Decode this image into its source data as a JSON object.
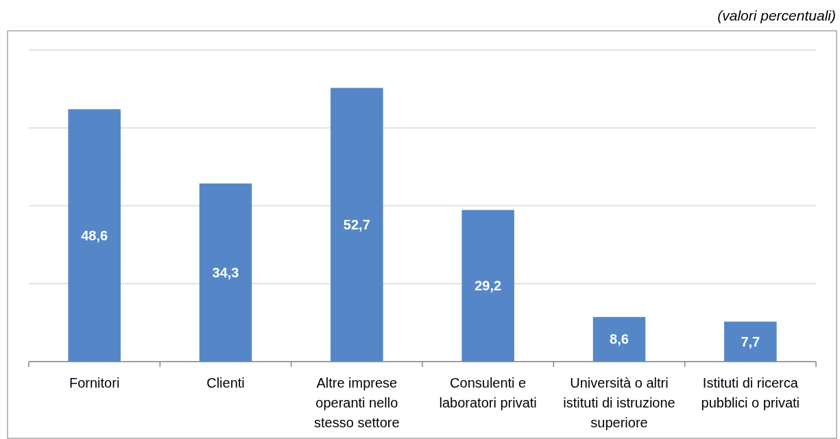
{
  "chart_data": {
    "type": "bar",
    "annotations": [
      "(valori percentuali)"
    ],
    "categories": [
      "Fornitori",
      "Clienti",
      "Altre imprese\noperanti nello\nstesso settore",
      "Consulenti e\nlaboratori privati",
      "Università o altri\nistituti di istruzione\nsuperiore",
      "Istituti di ricerca\npubblici o privati"
    ],
    "values": [
      48.6,
      34.3,
      52.7,
      29.2,
      8.6,
      7.7
    ],
    "color": "#5587c8",
    "value_labels": [
      "48,6",
      "34,3",
      "52,7",
      "29,2",
      "8,6",
      "7,7"
    ],
    "ylim": [
      0,
      60
    ],
    "yticks": [
      {
        "value": 0,
        "label": null
      },
      {
        "value": 15,
        "label": null
      },
      {
        "value": 30,
        "label": null
      },
      {
        "value": 45,
        "label": null
      },
      {
        "value": 60,
        "label": null
      }
    ],
    "grid": "y",
    "tick_labels": "x"
  }
}
